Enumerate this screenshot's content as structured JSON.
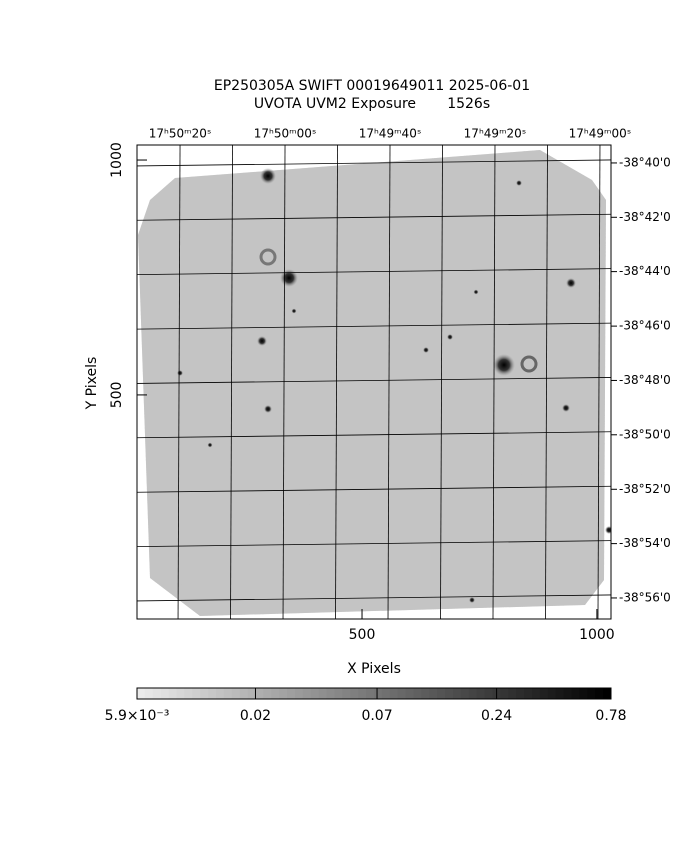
{
  "chart_data": {
    "type": "image",
    "title": "EP250305A SWIFT 00019649011 2025-06-01",
    "subtitle": "UVOTA UVM2 Exposure       1526s",
    "xlabel": "X Pixels",
    "ylabel": "Y Pixels",
    "xlim": [
      21,
      1030
    ],
    "ylim": [
      23,
      1032
    ],
    "xticks": [
      500,
      1000
    ],
    "yticks": [
      500,
      1000
    ],
    "x2lim": [
      64228.2,
      64137.9
    ],
    "x2ticks": [
      {
        "value": 64220,
        "label": "17ʰ50ᵐ20ˢ"
      },
      {
        "value": 64200,
        "label": "17ʰ50ᵐ00ˢ"
      },
      {
        "value": 64180,
        "label": "17ʰ49ᵐ40ˢ"
      },
      {
        "value": 64160,
        "label": "17ʰ49ᵐ20ˢ"
      },
      {
        "value": 64140,
        "label": "17ʰ49ᵐ00ˢ"
      }
    ],
    "y2lim": [
      -38.6557,
      -38.9462
    ],
    "y2ticks": [
      {
        "value": -38.6667,
        "label": "-38°40'0"
      },
      {
        "value": -38.7,
        "label": "-38°42'0"
      },
      {
        "value": -38.7333,
        "label": "-38°44'0"
      },
      {
        "value": -38.7667,
        "label": "-38°46'0"
      },
      {
        "value": -38.8,
        "label": "-38°48'0"
      },
      {
        "value": -38.8333,
        "label": "-38°50'0"
      },
      {
        "value": -38.8667,
        "label": "-38°52'0"
      },
      {
        "value": -38.9,
        "label": "-38°54'0"
      },
      {
        "value": -38.9333,
        "label": "-38°56'0"
      }
    ],
    "grid": true,
    "colorbar": {
      "scale": "log",
      "lim": [
        0.0059,
        0.78
      ],
      "ticks": [
        {
          "value": 0.0059,
          "label": "5.9×10⁻³"
        },
        0.02,
        0.07,
        0.24,
        0.78
      ]
    }
  }
}
